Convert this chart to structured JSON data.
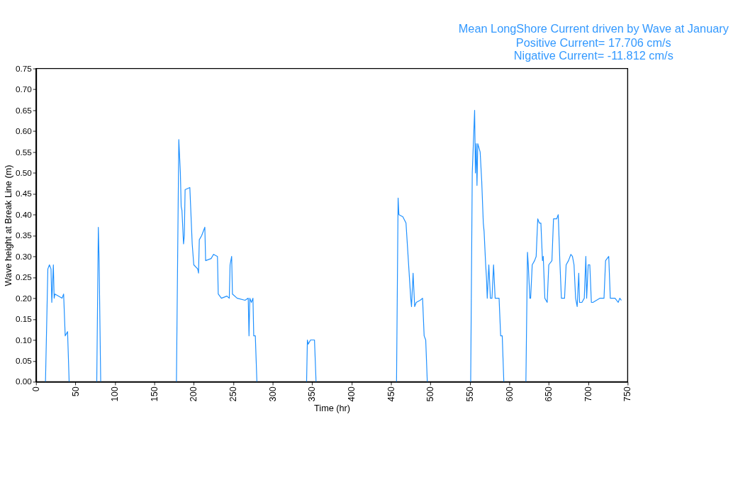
{
  "chart_data": {
    "type": "line",
    "title": "Mean LongShore Current driven by Wave at January",
    "annotations": [
      "Positive Current=  17.706 cm/s",
      "Nigative Current= -11.812 cm/s"
    ],
    "xlabel": "Time (hr)",
    "ylabel": "Wave height at Break Line (m)",
    "x": [
      12,
      15,
      17,
      19,
      20,
      22,
      23,
      24,
      33,
      35,
      37,
      40,
      42,
      60,
      77,
      79,
      80,
      82,
      130,
      178,
      181,
      183,
      184,
      185,
      187,
      188,
      189,
      195,
      198,
      200,
      205,
      206,
      207,
      210,
      214,
      215,
      222,
      225,
      230,
      231,
      235,
      242,
      245,
      246,
      248,
      249,
      255,
      265,
      269,
      270,
      271,
      273,
      275,
      276,
      278,
      280,
      310,
      343,
      344,
      345,
      348,
      353,
      355,
      400,
      457,
      459,
      460,
      465,
      469,
      475,
      476,
      478,
      480,
      482,
      487,
      490,
      492,
      494,
      496,
      520,
      551,
      553,
      556,
      557,
      558,
      559,
      560,
      563,
      565,
      567,
      568,
      570,
      571,
      572,
      574,
      576,
      578,
      580,
      582,
      587,
      589,
      591,
      593,
      610,
      621,
      623,
      624,
      626,
      627,
      629,
      632,
      634,
      636,
      638,
      640,
      642,
      643,
      645,
      648,
      650,
      654,
      656,
      660,
      662,
      664,
      666,
      670,
      672,
      675,
      678,
      680,
      682,
      684,
      686,
      688,
      689,
      692,
      695,
      697,
      698,
      700,
      702,
      704,
      706,
      715,
      720,
      722,
      726,
      728,
      734,
      738,
      740,
      742
    ],
    "series": [
      {
        "color": "#1e90ff",
        "values": [
          0,
          0.27,
          0.28,
          0.27,
          0.19,
          0.28,
          0.2,
          0.21,
          0.2,
          0.21,
          0.11,
          0.12,
          0,
          null,
          0,
          0.37,
          0.29,
          0,
          null,
          0,
          0.58,
          0.5,
          0.42,
          0.41,
          0.33,
          0.35,
          0.46,
          0.465,
          0.33,
          0.28,
          0.27,
          0.26,
          0.34,
          0.35,
          0.37,
          0.29,
          0.295,
          0.305,
          0.3,
          0.21,
          0.2,
          0.205,
          0.2,
          0.28,
          0.3,
          0.21,
          0.2,
          0.195,
          0.2,
          0.11,
          0.2,
          0.19,
          0.2,
          0.11,
          0.11,
          0,
          null,
          0,
          0.1,
          0.09,
          0.1,
          0.1,
          0,
          null,
          0,
          0.44,
          0.4,
          0.395,
          0.38,
          0.2,
          0.18,
          0.26,
          0.18,
          0.19,
          0.195,
          0.2,
          0.11,
          0.1,
          0,
          null,
          0,
          0.5,
          0.65,
          0.5,
          0.57,
          0.47,
          0.57,
          0.55,
          0.48,
          0.38,
          0.36,
          0.28,
          0.25,
          0.2,
          0.28,
          0.2,
          0.2,
          0.28,
          0.2,
          0.2,
          0.11,
          0.11,
          0,
          null,
          0,
          0.31,
          0.28,
          0.2,
          0.2,
          0.28,
          0.29,
          0.3,
          0.39,
          0.38,
          0.38,
          0.29,
          0.3,
          0.2,
          0.19,
          0.28,
          0.29,
          0.39,
          0.39,
          0.4,
          0.29,
          0.2,
          0.2,
          0.28,
          0.29,
          0.305,
          0.3,
          0.28,
          0.2,
          0.18,
          0.26,
          0.19,
          0.19,
          0.2,
          0.3,
          0.2,
          0.28,
          0.28,
          0.19,
          0.19,
          0.2,
          0.2,
          0.29,
          0.3,
          0.2,
          0.2,
          0.19,
          0.2,
          0.195
        ]
      }
    ],
    "xlim": [
      0,
      750
    ],
    "xticks": [
      0,
      50,
      100,
      150,
      200,
      250,
      300,
      350,
      400,
      450,
      500,
      550,
      600,
      650,
      700,
      750
    ],
    "ylim": [
      0,
      0.75
    ],
    "yticks": [
      {
        "value": 0,
        "label": "0.00"
      },
      {
        "value": 0.05,
        "label": "0.05"
      },
      {
        "value": 0.1,
        "label": "0.10"
      },
      {
        "value": 0.15,
        "label": "0.15"
      },
      {
        "value": 0.2,
        "label": "0.20"
      },
      {
        "value": 0.25,
        "label": "0.25"
      },
      {
        "value": 0.3,
        "label": "0.30"
      },
      {
        "value": 0.35,
        "label": "0.35"
      },
      {
        "value": 0.4,
        "label": "0.40"
      },
      {
        "value": 0.45,
        "label": "0.45"
      },
      {
        "value": 0.5,
        "label": "0.50"
      },
      {
        "value": 0.55,
        "label": "0.55"
      },
      {
        "value": 0.6,
        "label": "0.60"
      },
      {
        "value": 0.65,
        "label": "0.65"
      },
      {
        "value": 0.7,
        "label": "0.70"
      },
      {
        "value": 0.75,
        "label": "0.75"
      }
    ],
    "grid": false,
    "legend": false,
    "marker": "none",
    "line_style": "solid"
  }
}
